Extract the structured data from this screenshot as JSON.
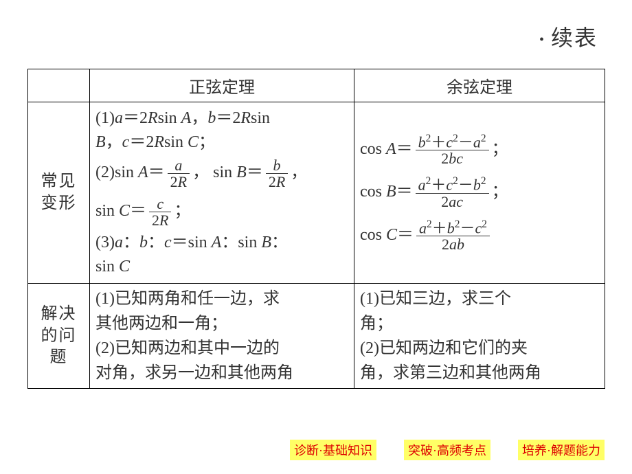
{
  "caption": "续表",
  "headers": {
    "blank": "",
    "sine": "正弦定理",
    "cosine": "余弦定理"
  },
  "row1": {
    "label_l1": "常见",
    "label_l2": "变形",
    "sine_p1a": "(1)",
    "sine_p1b": "＝2",
    "sine_p1c": "sin ",
    "sine_p1d": "，",
    "sine_p1e": "＝2",
    "sine_p1f": "sin",
    "sine_p1g": "，",
    "sine_p1h": "＝2",
    "sine_p1i": "sin ",
    "sine_p1j": "；",
    "sine_p2a": "(2)sin ",
    "sine_p2b": "＝",
    "sine_p2c": "， sin ",
    "sine_p2d": "＝",
    "sine_p2e": "，",
    "sine_p3a": "sin ",
    "sine_p3b": "＝",
    "sine_p3c": "；",
    "sine_p4a": "(3)",
    "sine_p4b": "：",
    "sine_p4c": "：",
    "sine_p4d": "＝sin ",
    "sine_p4e": "：sin ",
    "sine_p4f": "：",
    "sine_p4g": "sin ",
    "cos_a_l": "cos ",
    "cos_a_eq": "＝",
    "cos_a_end": "；",
    "cos_b_l": "cos ",
    "cos_b_eq": "＝",
    "cos_b_end": "；",
    "cos_c_l": "cos ",
    "cos_c_eq": "＝",
    "letters": {
      "a": "a",
      "b": "b",
      "c": "c",
      "A": "A",
      "B": "B",
      "C": "C",
      "R": "R",
      "two": "2"
    },
    "frac": {
      "a_num": "a",
      "a_den_2R": "2R",
      "b_num": "b",
      "b_den_2R": "2R",
      "c_num": "c",
      "c_den_2R": "2R",
      "cosA_num_b": "b",
      "cosA_num_plus": "＋",
      "cosA_num_c": "c",
      "cosA_num_minus": "－",
      "cosA_num_a": "a",
      "cosA_den": "2bc",
      "cosB_num_a": "a",
      "cosB_num_plus": "＋",
      "cosB_num_c": "c",
      "cosB_num_minus": "－",
      "cosB_num_b": "b",
      "cosB_den": "2ac",
      "cosC_num_a": "a",
      "cosC_num_plus": "＋",
      "cosC_num_b": "b",
      "cosC_num_minus": "－",
      "cosC_num_c": "c",
      "cosC_den": "2ab",
      "sq": "2"
    }
  },
  "row2": {
    "label_l1": "解决",
    "label_l2": "的问",
    "label_l3": "题",
    "sine_l1": "(1)已知两角和任一边，求",
    "sine_l2": "其他两边和一角；",
    "sine_l3": "(2)已知两边和其中一边的",
    "sine_l4": "对角，求另一边和其他两角",
    "cos_l1": "(1)已知三边，求三个",
    "cos_l2": "角；",
    "cos_l3": "(2)已知两边和它们的夹",
    "cos_l4": "角，求第三边和其他两角"
  },
  "footer": {
    "b1": "诊断·基础知识",
    "b2": "突破·高频考点",
    "b3": "培养·解题能力"
  },
  "colors": {
    "text": "#333333",
    "border": "#000000",
    "footer_bg": "#ffff66",
    "footer_text": "#d00000",
    "background": "#ffffff"
  }
}
